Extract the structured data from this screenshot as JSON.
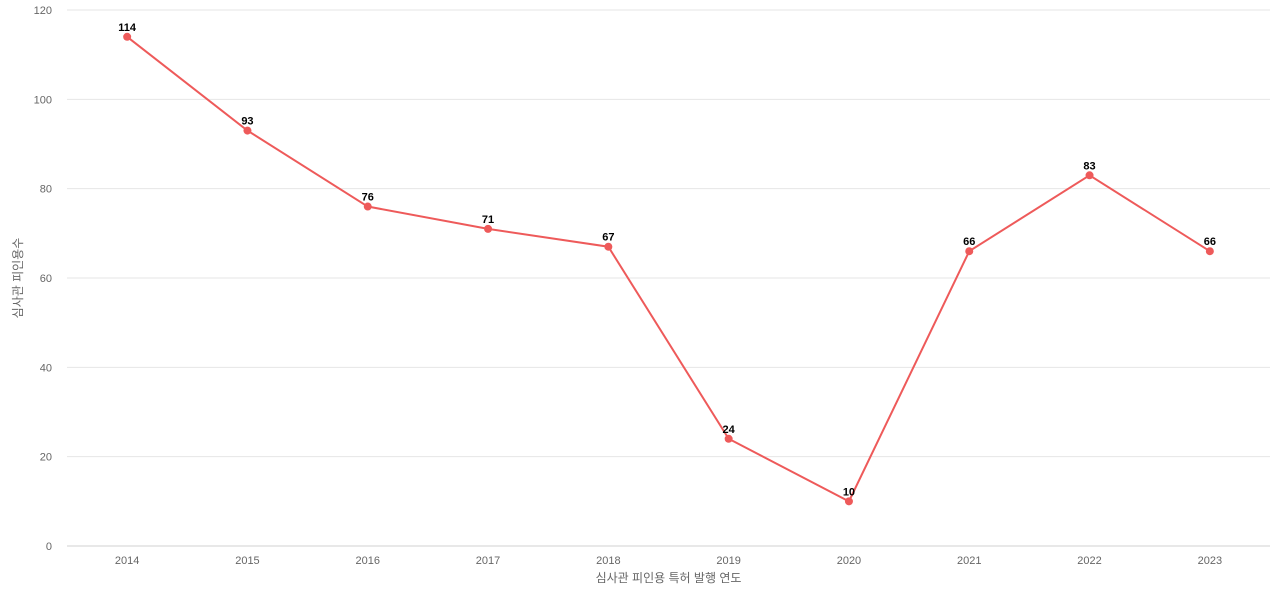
{
  "chart_data": {
    "type": "line",
    "title": "",
    "xlabel": "심사관 피인용 특허 발행 연도",
    "ylabel": "심사관 피인용수",
    "x": [
      "2014",
      "2015",
      "2016",
      "2017",
      "2018",
      "2019",
      "2020",
      "2021",
      "2022",
      "2023"
    ],
    "series": [
      {
        "values": [
          114,
          93,
          76,
          71,
          67,
          24,
          10,
          66,
          83,
          66
        ],
        "color": "#ee5a5a"
      }
    ],
    "ylim": [
      0,
      120
    ],
    "yticks": [
      0,
      20,
      40,
      60,
      80,
      100,
      120
    ],
    "grid": true,
    "legend": "none",
    "data_labels": true
  }
}
